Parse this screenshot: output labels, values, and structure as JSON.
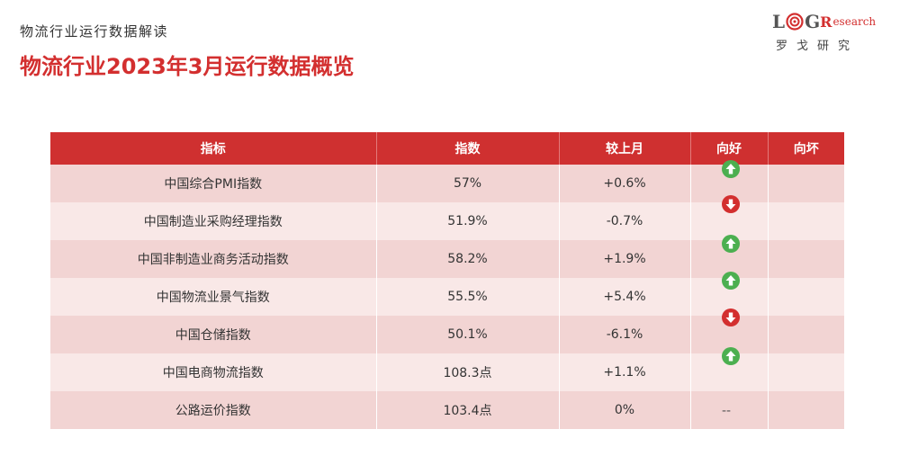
{
  "header": {
    "subtitle": "物流行业运行数据解读",
    "title": "物流行业2023年3月运行数据概览"
  },
  "logo": {
    "letter_l": "L",
    "letter_g": "G",
    "letter_r": "R",
    "research": "esearch",
    "cn_name": "罗戈研究",
    "accent_color": "#d32f2f"
  },
  "table": {
    "headers": [
      "指标",
      "指数",
      "较上月",
      "向好",
      "向坏"
    ],
    "rows": [
      {
        "name": "中国综合PMI指数",
        "value": "57%",
        "change": "+0.6%",
        "trend": "up"
      },
      {
        "name": "中国制造业采购经理指数",
        "value": "51.9%",
        "change": "-0.7%",
        "trend": "down"
      },
      {
        "name": "中国非制造业商务活动指数",
        "value": "58.2%",
        "change": "+1.9%",
        "trend": "up"
      },
      {
        "name": "中国物流业景气指数",
        "value": "55.5%",
        "change": "+5.4%",
        "trend": "up"
      },
      {
        "name": "中国仓储指数",
        "value": "50.1%",
        "change": "-6.1%",
        "trend": "down"
      },
      {
        "name": "中国电商物流指数",
        "value": "108.3点",
        "change": "+1.1%",
        "trend": "up"
      },
      {
        "name": "公路运价指数",
        "value": "103.4点",
        "change": "0%",
        "trend": "flat"
      }
    ],
    "flat_mark": "--",
    "colors": {
      "header": "#cf3030",
      "up": "#4caf50",
      "down": "#d32f2f"
    },
    "icons": {
      "up": "arrow-up-circle-icon",
      "down": "arrow-down-circle-icon"
    }
  }
}
